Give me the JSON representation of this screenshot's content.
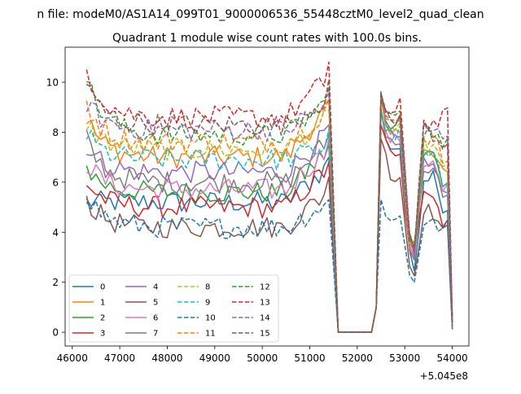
{
  "figure": {
    "suptitle": "n file: modeM0/AS1A14_099T01_9000006536_55448cztM0_level2_quad_clean",
    "title": "Quadrant 1 module wise count rates with 100.0s bins.",
    "offset_label": "+5.045e8"
  },
  "chart_data": {
    "type": "line",
    "title": "Quadrant 1 module wise count rates with 100.0s bins.",
    "suptitle": "n file: modeM0/AS1A14_099T01_9000006536_55448cztM0_level2_quad_clean",
    "x_offset": 504500000,
    "xlim": [
      45850,
      54350
    ],
    "ylim": [
      -0.55,
      11.4
    ],
    "xticks": [
      46000,
      47000,
      48000,
      49000,
      50000,
      51000,
      52000,
      53000,
      54000
    ],
    "yticks": [
      0,
      2,
      4,
      6,
      8,
      10
    ],
    "grid": false,
    "legend": {
      "placement": "lower-left",
      "ncol": 4
    },
    "x_knots": [
      46300,
      51300,
      51400,
      51600,
      52300,
      52400,
      52500,
      52600,
      52750,
      52900,
      53100,
      53200,
      53400,
      53650,
      53800,
      53900,
      54000
    ],
    "series": [
      {
        "name": "0",
        "color": "#1f77b4",
        "dashed": false,
        "base": 5.2,
        "knots": [
          5.2,
          6.5,
          7.0,
          0,
          0,
          1.0,
          9.0,
          7.6,
          7.4,
          7.4,
          3.0,
          2.5,
          6.2,
          6.4,
          4.9,
          5.0,
          0.3
        ]
      },
      {
        "name": "1",
        "color": "#ff7f0e",
        "dashed": false,
        "base": 7.0,
        "knots": [
          8.6,
          8.8,
          9.3,
          0,
          0,
          1.0,
          9.2,
          8.0,
          7.8,
          8.1,
          3.6,
          3.0,
          7.2,
          7.0,
          6.3,
          6.3,
          0.5
        ]
      },
      {
        "name": "2",
        "color": "#2ca02c",
        "dashed": false,
        "base": 5.6,
        "knots": [
          6.6,
          7.1,
          7.5,
          0,
          0,
          1.0,
          9.6,
          8.3,
          8.0,
          8.5,
          4.0,
          3.4,
          7.3,
          7.2,
          5.7,
          5.9,
          0.4
        ]
      },
      {
        "name": "3",
        "color": "#d62728",
        "dashed": false,
        "base": 5.0,
        "knots": [
          6.0,
          6.4,
          6.8,
          0,
          0,
          1.0,
          8.4,
          7.5,
          6.9,
          7.0,
          3.2,
          2.9,
          5.8,
          5.6,
          4.3,
          4.5,
          0.3
        ]
      },
      {
        "name": "4",
        "color": "#9467bd",
        "dashed": false,
        "base": 6.4,
        "knots": [
          7.5,
          7.8,
          8.3,
          0,
          0,
          1.0,
          9.4,
          8.0,
          7.8,
          7.6,
          3.9,
          3.2,
          6.8,
          6.6,
          5.4,
          5.6,
          0.4
        ]
      },
      {
        "name": "5",
        "color": "#8c564b",
        "dashed": false,
        "base": 4.2,
        "knots": [
          5.3,
          5.5,
          6.2,
          0,
          0,
          1.0,
          7.9,
          7.0,
          6.1,
          6.3,
          2.7,
          2.3,
          5.0,
          4.7,
          3.9,
          4.1,
          0.3
        ]
      },
      {
        "name": "6",
        "color": "#e377c2",
        "dashed": false,
        "base": 5.7,
        "knots": [
          6.8,
          7.2,
          7.7,
          0,
          0,
          1.0,
          9.0,
          7.9,
          7.6,
          7.8,
          3.6,
          3.1,
          6.8,
          6.7,
          5.5,
          5.8,
          0.4
        ]
      },
      {
        "name": "7",
        "color": "#7f7f7f",
        "dashed": false,
        "base": 6.0,
        "knots": [
          7.7,
          7.5,
          7.9,
          0,
          0,
          1.0,
          8.8,
          8.0,
          7.5,
          7.5,
          3.4,
          3.0,
          6.6,
          6.5,
          5.2,
          5.4,
          0.4
        ]
      },
      {
        "name": "8",
        "color": "#bcbd22",
        "dashed": true,
        "base": 7.3,
        "knots": [
          8.4,
          8.5,
          8.9,
          0,
          0,
          1.0,
          9.3,
          8.2,
          8.0,
          8.4,
          3.7,
          3.2,
          7.5,
          7.4,
          6.4,
          6.6,
          0.5
        ]
      },
      {
        "name": "9",
        "color": "#17becf",
        "dashed": true,
        "base": 6.9,
        "knots": [
          7.9,
          7.4,
          8.1,
          0,
          0,
          1.0,
          8.9,
          8.1,
          7.9,
          8.0,
          3.5,
          3.1,
          7.1,
          6.9,
          5.9,
          6.1,
          0.4
        ]
      },
      {
        "name": "10",
        "color": "#1f77b4",
        "dashed": true,
        "base": 4.2,
        "knots": [
          5.6,
          5.1,
          5.3,
          0,
          0,
          1.0,
          5.2,
          4.6,
          4.7,
          4.6,
          2.3,
          2.1,
          4.4,
          4.3,
          4.1,
          4.2,
          0.2
        ]
      },
      {
        "name": "11",
        "color": "#ff7f0e",
        "dashed": true,
        "base": 7.6,
        "knots": [
          9.2,
          8.8,
          9.3,
          0,
          0,
          1.0,
          9.3,
          8.4,
          8.2,
          8.6,
          3.6,
          3.0,
          7.8,
          7.7,
          6.9,
          7.1,
          0.5
        ]
      },
      {
        "name": "12",
        "color": "#2ca02c",
        "dashed": true,
        "base": 7.9,
        "knots": [
          10.2,
          9.1,
          9.8,
          0,
          0,
          1.0,
          9.6,
          8.7,
          8.5,
          8.9,
          3.8,
          3.3,
          8.1,
          8.0,
          7.3,
          7.5,
          0.5
        ]
      },
      {
        "name": "13",
        "color": "#d62728",
        "dashed": true,
        "base": 8.6,
        "knots": [
          10.6,
          10.0,
          10.8,
          0,
          0,
          1.0,
          9.5,
          8.9,
          8.6,
          9.1,
          4.0,
          3.4,
          8.4,
          8.3,
          8.6,
          8.7,
          0.6
        ]
      },
      {
        "name": "14",
        "color": "#9467bd",
        "dashed": true,
        "base": 8.1,
        "knots": [
          9.2,
          9.0,
          9.6,
          0,
          0,
          1.0,
          9.4,
          8.6,
          8.4,
          8.7,
          3.9,
          3.3,
          8.3,
          8.1,
          7.7,
          7.8,
          0.5
        ]
      },
      {
        "name": "15",
        "color": "#8c564b",
        "dashed": true,
        "base": 8.3,
        "knots": [
          9.9,
          9.3,
          10.1,
          0,
          0,
          1.0,
          9.5,
          8.6,
          8.3,
          8.6,
          3.8,
          3.2,
          8.2,
          7.8,
          7.5,
          7.7,
          0.5
        ]
      }
    ]
  }
}
